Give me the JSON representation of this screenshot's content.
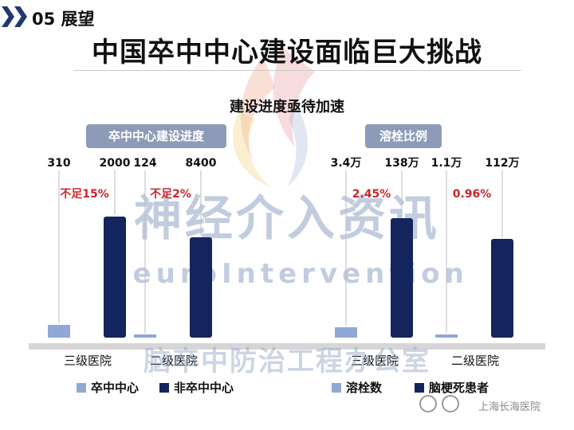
{
  "header": {
    "section": "05 展望",
    "title": "中国卒中中心建设面临巨大挑战",
    "subtitle": "建设进度亟待加速"
  },
  "panels": [
    {
      "label": "卒中中心建设进度"
    },
    {
      "label": "溶栓比例"
    }
  ],
  "chart_data": [
    {
      "type": "bar",
      "title": "卒中中心建设进度",
      "categories": [
        "三级医院",
        "二级医院"
      ],
      "series": [
        {
          "name": "卒中中心",
          "values": [
            310,
            124
          ],
          "labels": [
            "310",
            "124"
          ],
          "color": "#8fa8d6"
        },
        {
          "name": "非卒中中心",
          "values": [
            2000,
            8400
          ],
          "labels": [
            "2000",
            "8400"
          ],
          "color": "#14255e"
        }
      ],
      "annotations": [
        "不足15%",
        "不足2%"
      ],
      "axis_break": true
    },
    {
      "type": "bar",
      "title": "溶栓比例",
      "categories": [
        "三级医院",
        "二级医院"
      ],
      "series": [
        {
          "name": "溶栓数",
          "values": [
            34000,
            11000
          ],
          "labels": [
            "3.4万",
            "1.1万"
          ],
          "color": "#8fa8d6"
        },
        {
          "name": "脑梗死患者",
          "values": [
            1380000,
            1120000
          ],
          "labels": [
            "138万",
            "112万"
          ],
          "color": "#14255e"
        }
      ],
      "annotations": [
        "2.45%",
        "0.96%"
      ],
      "axis_break": true
    }
  ],
  "watermark": {
    "line1": "神经介入资讯",
    "line2": "NeuroIntervention",
    "line3": "脑卒中防治工程办公室"
  },
  "footer": {
    "hospital": "上海长海医院"
  },
  "colors": {
    "light": "#8fa8d6",
    "dark": "#14255e",
    "pill": "#8e9bb8",
    "accent_red": "#c8272d"
  }
}
